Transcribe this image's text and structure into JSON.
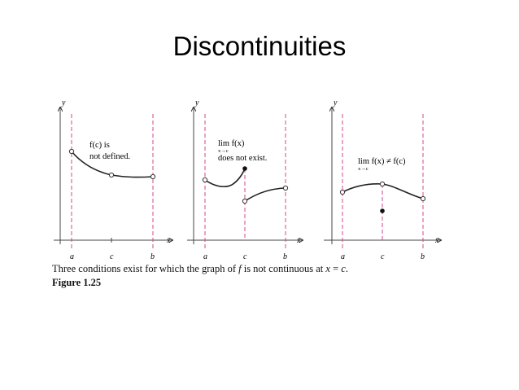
{
  "slide": {
    "title": "Discontinuities"
  },
  "axes": {
    "y": "y",
    "x": "x",
    "a": "a",
    "b": "b",
    "c": "c"
  },
  "panels": [
    {
      "annotation_line1": "f(c) is",
      "annotation_line2": "not defined."
    },
    {
      "lim_text": "lim f(x)",
      "lim_sub": "x→c",
      "annotation_line2": "does not exist."
    },
    {
      "lim_text": "lim f(x) ≠ f(c)",
      "lim_sub": "x→c"
    }
  ],
  "figure": {
    "caption_prefix": "Three conditions exist for which the graph of ",
    "caption_f": "f",
    "caption_mid": " is not continuous at ",
    "caption_x": "x",
    "caption_eq": " = ",
    "caption_c": "c",
    "caption_end": ".",
    "label": "Figure 1.25"
  },
  "colors": {
    "dashed": "#d6478a",
    "curve": "#222222"
  }
}
